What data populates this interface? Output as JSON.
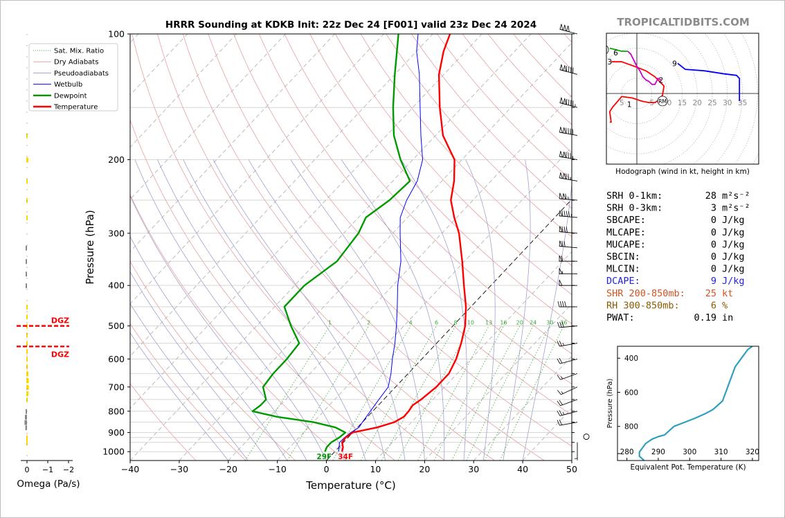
{
  "title": "HRRR Sounding at KDKB Init: 22z Dec 24 [F001] valid 23z Dec 24 2024",
  "watermark": "TROPICALTIDBITS.COM",
  "chart_data": [
    {
      "type": "skewt",
      "xlabel": "Temperature (°C)",
      "ylabel": "Pressure (hPa)",
      "xlim": [
        -40,
        50
      ],
      "ylim": [
        1050,
        100
      ],
      "y_scale": "log",
      "x_ticks": [
        "−40",
        "−30",
        "−20",
        "−10",
        "0",
        "10",
        "20",
        "30",
        "40",
        "50"
      ],
      "y_ticks": [
        "100",
        "200",
        "300",
        "400",
        "500",
        "600",
        "700",
        "800",
        "900",
        "1000"
      ],
      "legend_location": "upper-left",
      "legend": [
        "Sat. Mix. Ratio",
        "Dry Adiabats",
        "Pseudoadiabats",
        "Wetbulb",
        "Dewpoint",
        "Temperature"
      ],
      "mixing_ratio_labels": [
        "1",
        "2",
        "4",
        "6",
        "8",
        "10",
        "13",
        "16",
        "20",
        "24",
        "30",
        "36"
      ],
      "surface_labels": {
        "dewpoint": "29F",
        "temperature": "34F"
      },
      "colors": {
        "temperature": "#ff0000",
        "dewpoint": "#009900",
        "wetbulb": "#0000ff",
        "dry_adiabats": "#e6a0a0",
        "pseudoadiabats": "#a0a0d0",
        "mix_ratio": "#33aa33",
        "freezing_isotherm": "#000000"
      },
      "series": [
        {
          "name": "Temperature",
          "points": [
            [
              1000,
              1.5
            ],
            [
              975,
              0.8
            ],
            [
              950,
              -0.3
            ],
            [
              925,
              -0.5
            ],
            [
              900,
              0.0
            ],
            [
              875,
              4.0
            ],
            [
              850,
              6.5
            ],
            [
              825,
              7.4
            ],
            [
              800,
              7.3
            ],
            [
              775,
              7.0
            ],
            [
              750,
              7.6
            ],
            [
              700,
              8.3
            ],
            [
              650,
              8.3
            ],
            [
              600,
              7.0
            ],
            [
              550,
              5.0
            ],
            [
              500,
              2.5
            ],
            [
              450,
              -1.0
            ],
            [
              400,
              -5.5
            ],
            [
              350,
              -10.5
            ],
            [
              300,
              -16.5
            ],
            [
              275,
              -20.5
            ],
            [
              250,
              -24.5
            ],
            [
              225,
              -27.5
            ],
            [
              200,
              -31.5
            ],
            [
              175,
              -38.5
            ],
            [
              150,
              -44.5
            ],
            [
              125,
              -51.0
            ],
            [
              110,
              -54.5
            ],
            [
              100,
              -56.5
            ]
          ]
        },
        {
          "name": "Dewpoint",
          "points": [
            [
              1000,
              -2.0
            ],
            [
              975,
              -2.5
            ],
            [
              950,
              -2.5
            ],
            [
              925,
              -1.8
            ],
            [
              900,
              -1.5
            ],
            [
              875,
              -4.5
            ],
            [
              850,
              -10.0
            ],
            [
              825,
              -18.5
            ],
            [
              800,
              -24.5
            ],
            [
              775,
              -24.0
            ],
            [
              750,
              -24.0
            ],
            [
              700,
              -27.0
            ],
            [
              650,
              -27.5
            ],
            [
              600,
              -27.5
            ],
            [
              550,
              -28.0
            ],
            [
              500,
              -33.0
            ],
            [
              450,
              -38.0
            ],
            [
              400,
              -38.0
            ],
            [
              350,
              -36.0
            ],
            [
              300,
              -37.0
            ],
            [
              275,
              -38.5
            ],
            [
              250,
              -37.0
            ],
            [
              225,
              -36.5
            ],
            [
              200,
              -42.5
            ],
            [
              175,
              -48.5
            ],
            [
              150,
              -54.0
            ],
            [
              125,
              -60.0
            ],
            [
              110,
              -64.0
            ],
            [
              100,
              -67.0
            ]
          ]
        },
        {
          "name": "Wetbulb",
          "points": [
            [
              1000,
              0.8
            ],
            [
              975,
              0.0
            ],
            [
              950,
              -0.8
            ],
            [
              925,
              -0.7
            ],
            [
              900,
              -0.4
            ],
            [
              875,
              0.3
            ],
            [
              850,
              0.0
            ],
            [
              800,
              -0.5
            ],
            [
              750,
              -1.0
            ],
            [
              700,
              -1.5
            ],
            [
              650,
              -3.5
            ],
            [
              600,
              -6.0
            ],
            [
              550,
              -8.5
            ],
            [
              500,
              -11.5
            ],
            [
              450,
              -15.0
            ],
            [
              400,
              -19.0
            ],
            [
              350,
              -23.0
            ],
            [
              300,
              -28.5
            ],
            [
              275,
              -31.5
            ],
            [
              250,
              -33.5
            ],
            [
              225,
              -35.0
            ],
            [
              200,
              -38.0
            ],
            [
              175,
              -43.0
            ],
            [
              150,
              -48.5
            ],
            [
              125,
              -55.0
            ],
            [
              110,
              -60.0
            ],
            [
              100,
              -63.0
            ]
          ]
        }
      ]
    },
    {
      "type": "bar",
      "name": "omega",
      "xlabel": "Omega (Pa/s)",
      "x_ticks": [
        "0",
        "−1",
        "−2"
      ],
      "annotations": [
        "DGZ",
        "DGZ"
      ],
      "bars": [
        {
          "p": 175,
          "w": -0.05,
          "color": "#ffd700"
        },
        {
          "p": 200,
          "w": -0.1,
          "color": "#ffd700"
        },
        {
          "p": 225,
          "w": -0.06,
          "color": "#ffd700"
        },
        {
          "p": 250,
          "w": -0.05,
          "color": "#ffd700"
        },
        {
          "p": 275,
          "w": -0.03,
          "color": "#ffd700"
        },
        {
          "p": 325,
          "w": 0.02,
          "color": "#888888"
        },
        {
          "p": 350,
          "w": 0.03,
          "color": "#888888"
        },
        {
          "p": 375,
          "w": 0.04,
          "color": "#888888"
        },
        {
          "p": 400,
          "w": 0.03,
          "color": "#888888"
        },
        {
          "p": 450,
          "w": -0.03,
          "color": "#ffd700"
        },
        {
          "p": 475,
          "w": -0.04,
          "color": "#ffd700"
        },
        {
          "p": 500,
          "w": -0.05,
          "color": "#ffd700"
        },
        {
          "p": 525,
          "w": -0.04,
          "color": "#ffd700"
        },
        {
          "p": 550,
          "w": -0.06,
          "color": "#ffd700"
        },
        {
          "p": 575,
          "w": -0.05,
          "color": "#ffd700"
        },
        {
          "p": 600,
          "w": -0.06,
          "color": "#ffd700"
        },
        {
          "p": 625,
          "w": -0.07,
          "color": "#ffd700"
        },
        {
          "p": 650,
          "w": -0.1,
          "color": "#ffd700"
        },
        {
          "p": 675,
          "w": -0.12,
          "color": "#ffd700"
        },
        {
          "p": 700,
          "w": -0.12,
          "color": "#ffd700"
        },
        {
          "p": 725,
          "w": -0.1,
          "color": "#ffd700"
        },
        {
          "p": 750,
          "w": -0.06,
          "color": "#ffd700"
        },
        {
          "p": 800,
          "w": 0.05,
          "color": "#888888"
        },
        {
          "p": 825,
          "w": 0.1,
          "color": "#888888"
        },
        {
          "p": 850,
          "w": 0.12,
          "color": "#888888"
        },
        {
          "p": 875,
          "w": 0.08,
          "color": "#888888"
        },
        {
          "p": 925,
          "w": -0.03,
          "color": "#ffd700"
        },
        {
          "p": 950,
          "w": -0.02,
          "color": "#ffd700"
        }
      ],
      "dgz_pressures": [
        500,
        560
      ]
    },
    {
      "type": "line",
      "name": "hodograph",
      "caption": "Hodograph (wind in kt, height in km)",
      "ring_labels": [
        "5",
        "5",
        "10",
        "15",
        "20",
        "25",
        "30",
        "35"
      ],
      "point_labels": [
        {
          "text": "1",
          "u": -5,
          "v": -7
        },
        {
          "text": "2",
          "u": 16,
          "v": 9
        },
        {
          "text": "3",
          "u": -18,
          "v": 21
        },
        {
          "text": "6",
          "u": -14,
          "v": 27
        },
        {
          "text": "9",
          "u": 25,
          "v": 20
        }
      ],
      "markers": [
        {
          "text": "LM",
          "u": -22,
          "v": 29
        },
        {
          "text": "RM",
          "u": 17,
          "v": -5
        }
      ],
      "segments": [
        {
          "color": "#ff0000",
          "points": [
            [
              -18,
              -19
            ],
            [
              -17,
              -19
            ],
            [
              -18,
              -12
            ],
            [
              -16,
              -9
            ],
            [
              -10,
              -2
            ],
            [
              -3,
              -3
            ],
            [
              3,
              -5
            ],
            [
              8,
              -6
            ],
            [
              12,
              -6
            ],
            [
              15,
              -4
            ],
            [
              17,
              -1
            ],
            [
              18,
              5
            ],
            [
              14,
              9
            ],
            [
              12,
              11
            ],
            [
              6,
              15
            ],
            [
              1,
              17
            ],
            [
              -10,
              21
            ],
            [
              -17,
              21
            ]
          ]
        },
        {
          "color": "#cc00cc",
          "points": [
            [
              16,
              9
            ],
            [
              14,
              10
            ],
            [
              13,
              8
            ],
            [
              12,
              6
            ],
            [
              10,
              6
            ],
            [
              8,
              8
            ],
            [
              6,
              9
            ],
            [
              4,
              11
            ],
            [
              2,
              15
            ],
            [
              0,
              18
            ],
            [
              -4,
              26
            ],
            [
              -6,
              28
            ]
          ]
        },
        {
          "color": "#00aa00",
          "points": [
            [
              -6,
              28
            ],
            [
              -10,
              28
            ],
            [
              -14,
              29
            ],
            [
              -18,
              30
            ]
          ]
        },
        {
          "color": "#0000ff",
          "points": [
            [
              27,
              20
            ],
            [
              32,
              16
            ],
            [
              45,
              15
            ],
            [
              58,
              13
            ],
            [
              66,
              12
            ],
            [
              68,
              10
            ],
            [
              68,
              2
            ],
            [
              68,
              -5
            ]
          ]
        }
      ]
    },
    {
      "type": "line",
      "name": "theta_e",
      "ylabel": "Pressure (hPa)",
      "xlabel": "Equivalent Pot. Temperature (K)",
      "xlim": [
        277,
        322
      ],
      "ylim": [
        1000,
        330
      ],
      "x_ticks": [
        "280",
        "290",
        "300",
        "310",
        "320"
      ],
      "y_ticks": [
        "400",
        "600",
        "800"
      ],
      "color": "#2f9fbf",
      "points": [
        [
          285.5,
          1000
        ],
        [
          284.0,
          975
        ],
        [
          284.0,
          950
        ],
        [
          285.0,
          925
        ],
        [
          286.0,
          900
        ],
        [
          288.0,
          875
        ],
        [
          290.0,
          860
        ],
        [
          292.0,
          850
        ],
        [
          293.5,
          825
        ],
        [
          295.0,
          800
        ],
        [
          298.5,
          775
        ],
        [
          302.0,
          750
        ],
        [
          305.0,
          725
        ],
        [
          307.5,
          700
        ],
        [
          309.0,
          675
        ],
        [
          310.5,
          650
        ],
        [
          311.0,
          625
        ],
        [
          311.5,
          600
        ],
        [
          312.5,
          550
        ],
        [
          313.5,
          500
        ],
        [
          314.5,
          450
        ],
        [
          316.5,
          400
        ],
        [
          318.5,
          350
        ],
        [
          320.0,
          330
        ]
      ]
    }
  ],
  "indices": [
    {
      "label": "SRH 0-1km:",
      "value": "28",
      "unit": "m²s⁻²",
      "color": "#000000"
    },
    {
      "label": "SRH 0-3km:",
      "value": "3",
      "unit": "m²s⁻²",
      "color": "#000000"
    },
    {
      "label": "SBCAPE:",
      "value": "0",
      "unit": "J/kg",
      "color": "#000000"
    },
    {
      "label": "MLCAPE:",
      "value": "0",
      "unit": "J/kg",
      "color": "#000000"
    },
    {
      "label": "MUCAPE:",
      "value": "0",
      "unit": "J/kg",
      "color": "#000000"
    },
    {
      "label": "SBCIN:",
      "value": "0",
      "unit": "J/kg",
      "color": "#000000"
    },
    {
      "label": "MLCIN:",
      "value": "0",
      "unit": "J/kg",
      "color": "#000000"
    },
    {
      "label": "DCAPE:",
      "value": "9",
      "unit": "J/kg",
      "color": "#2222dd"
    },
    {
      "label": "SHR 200-850mb:",
      "value": "25",
      "unit": "kt",
      "color": "#cc5522"
    },
    {
      "label": "RH 300-850mb:",
      "value": "6",
      "unit": "%",
      "color": "#8a5a00"
    },
    {
      "label": "PWAT:",
      "value": "0.19",
      "unit": "in",
      "color": "#000000"
    }
  ],
  "wind_barbs": [
    {
      "p": 100,
      "dir": 285,
      "spd": 150
    },
    {
      "p": 125,
      "dir": 285,
      "spd": 140
    },
    {
      "p": 150,
      "dir": 285,
      "spd": 145
    },
    {
      "p": 175,
      "dir": 280,
      "spd": 140
    },
    {
      "p": 200,
      "dir": 280,
      "spd": 135
    },
    {
      "p": 225,
      "dir": 280,
      "spd": 125
    },
    {
      "p": 250,
      "dir": 275,
      "spd": 115
    },
    {
      "p": 275,
      "dir": 275,
      "spd": 95
    },
    {
      "p": 300,
      "dir": 275,
      "spd": 80
    },
    {
      "p": 325,
      "dir": 275,
      "spd": 70
    },
    {
      "p": 350,
      "dir": 270,
      "spd": 60
    },
    {
      "p": 375,
      "dir": 270,
      "spd": 55
    },
    {
      "p": 400,
      "dir": 270,
      "spd": 50
    },
    {
      "p": 450,
      "dir": 270,
      "spd": 40
    },
    {
      "p": 500,
      "dir": 265,
      "spd": 30
    },
    {
      "p": 550,
      "dir": 260,
      "spd": 25
    },
    {
      "p": 600,
      "dir": 255,
      "spd": 20
    },
    {
      "p": 650,
      "dir": 250,
      "spd": 15
    },
    {
      "p": 700,
      "dir": 245,
      "spd": 15
    },
    {
      "p": 750,
      "dir": 250,
      "spd": 20
    },
    {
      "p": 800,
      "dir": 255,
      "spd": 25
    },
    {
      "p": 850,
      "dir": 260,
      "spd": 20
    },
    {
      "p": 900,
      "dir": 0,
      "spd": 0
    },
    {
      "p": 950,
      "dir": 180,
      "spd": 5
    }
  ]
}
